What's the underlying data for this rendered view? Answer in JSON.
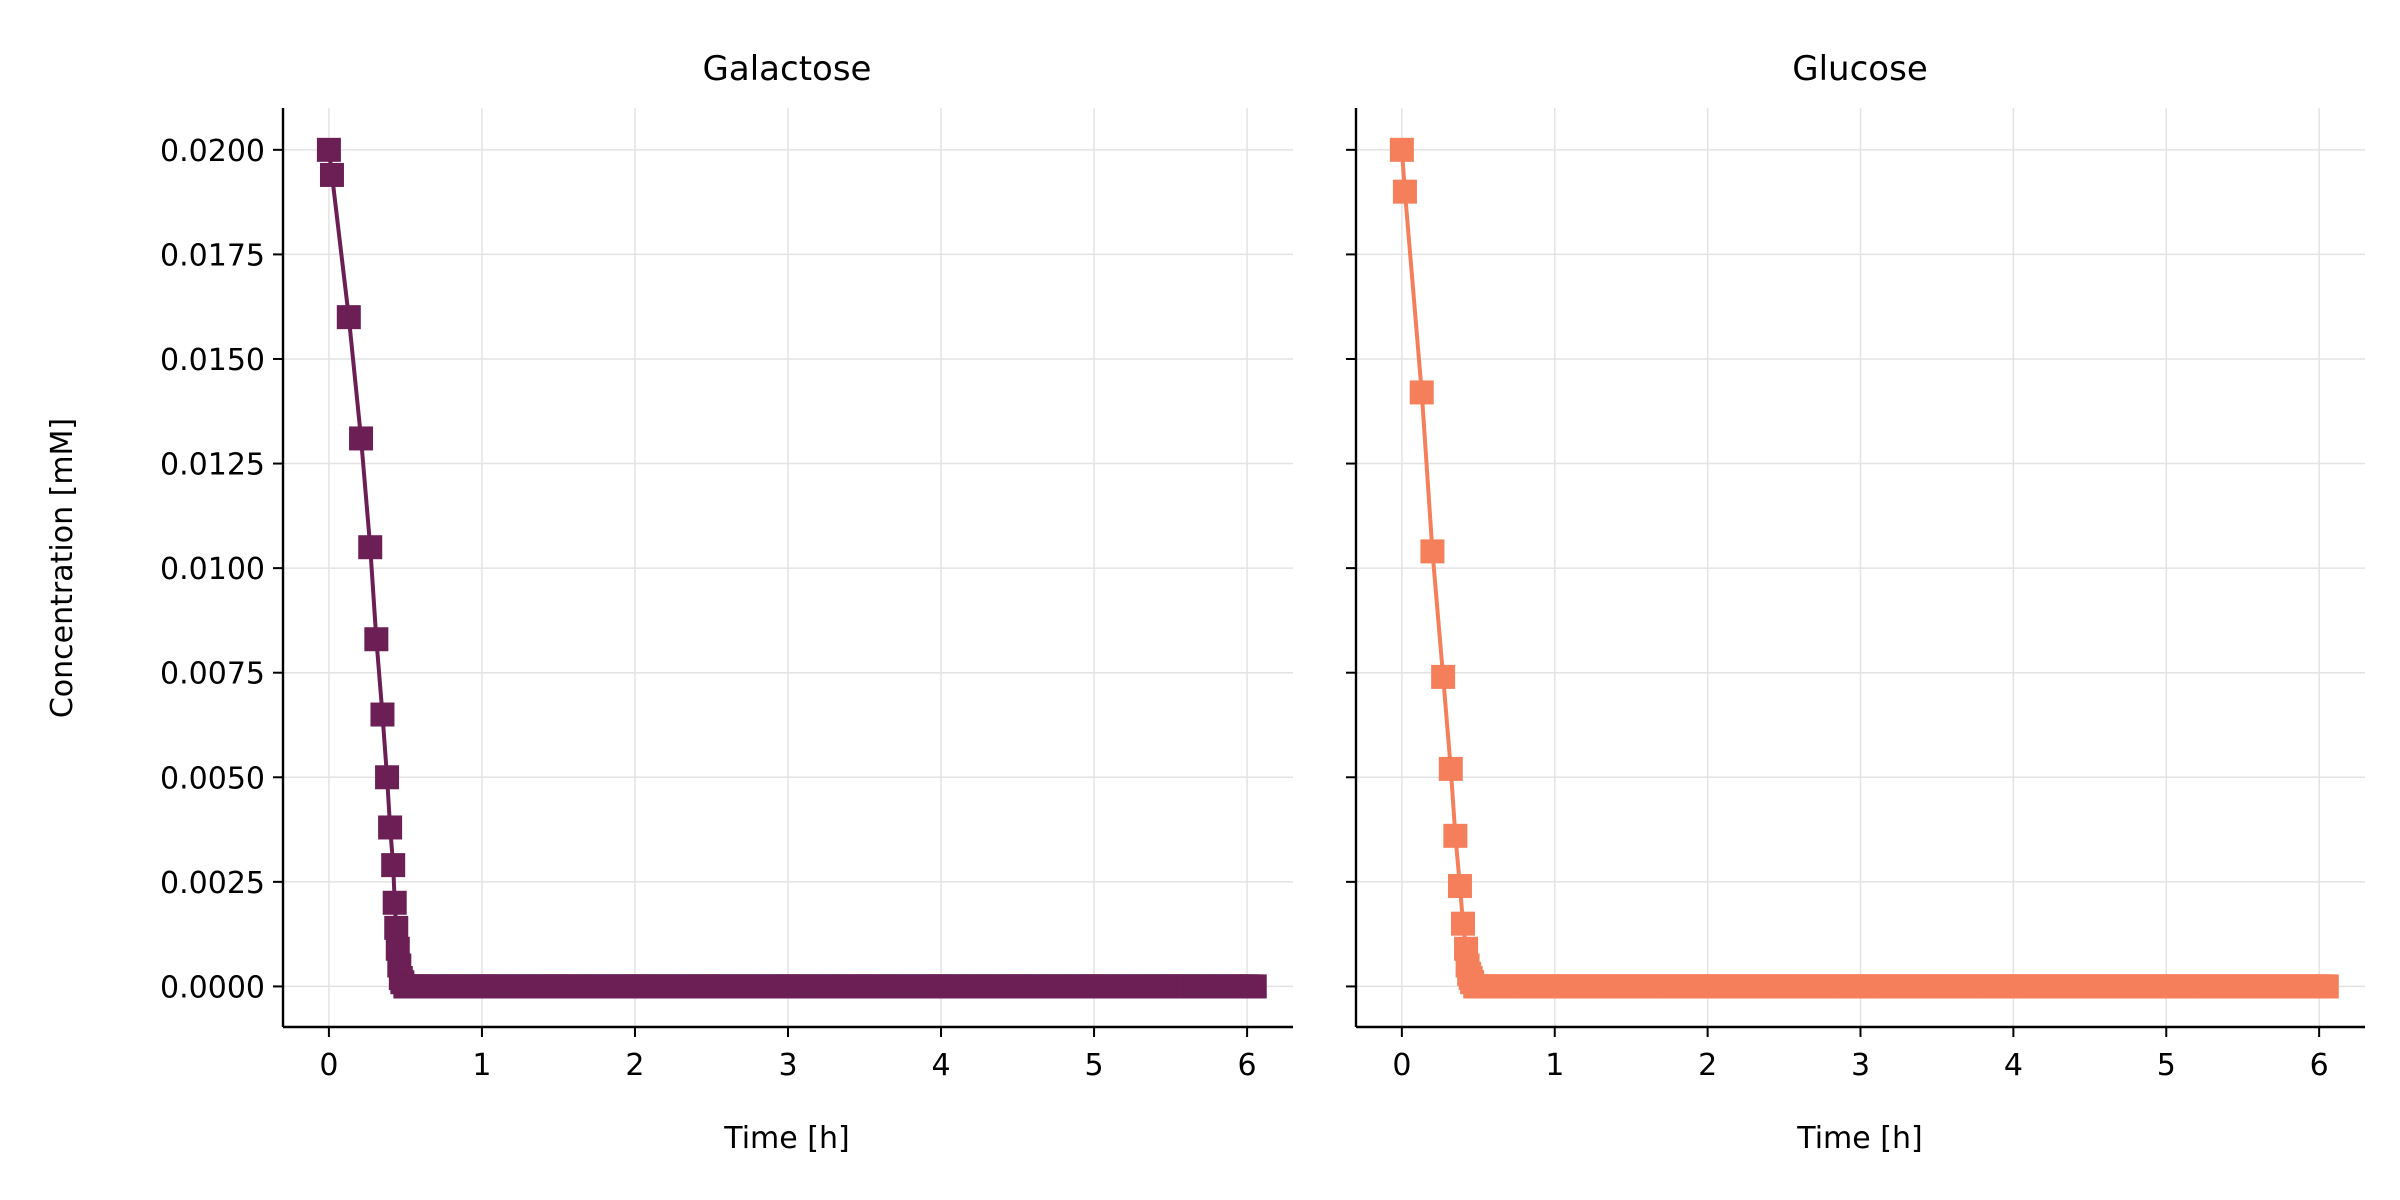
{
  "chart_data": [
    {
      "type": "line",
      "title": "Galactose",
      "xlabel": "Time [h]",
      "ylabel": "Concentration [mM]",
      "xlim": [
        -0.3,
        6.3
      ],
      "ylim": [
        -0.00097,
        0.021
      ],
      "xticks": [
        0,
        1,
        2,
        3,
        4,
        5,
        6
      ],
      "yticks": [
        "0.0000",
        "0.0025",
        "0.0050",
        "0.0075",
        "0.0100",
        "0.0125",
        "0.0150",
        "0.0175",
        "0.0200"
      ],
      "grid": true,
      "marker": "square",
      "color": "#6b1f55",
      "series": [
        {
          "x": [
            0.0,
            0.02,
            0.13,
            0.21,
            0.27,
            0.31,
            0.35,
            0.38,
            0.4,
            0.42,
            0.43,
            0.44,
            0.45,
            0.46,
            0.47,
            0.48,
            0.5,
            0.55,
            0.6,
            0.8,
            1.0,
            1.5,
            2.0,
            2.5,
            3.0,
            3.5,
            4.0,
            4.5,
            5.0,
            5.5,
            6.0,
            6.05
          ],
          "y": [
            0.02,
            0.0194,
            0.016,
            0.0131,
            0.0105,
            0.0083,
            0.0065,
            0.005,
            0.0038,
            0.0029,
            0.002,
            0.0014,
            0.0009,
            0.0005,
            0.0002,
            0.0001,
            0.0,
            0.0,
            0.0,
            0.0,
            0.0,
            0.0,
            0.0,
            0.0,
            0.0,
            0.0,
            0.0,
            0.0,
            0.0,
            0.0,
            0.0,
            0.0
          ]
        }
      ]
    },
    {
      "type": "line",
      "title": "Glucose",
      "xlabel": "Time [h]",
      "ylabel": "",
      "xlim": [
        -0.3,
        6.3
      ],
      "ylim": [
        -0.00097,
        0.021
      ],
      "xticks": [
        0,
        1,
        2,
        3,
        4,
        5,
        6
      ],
      "yticks": [],
      "grid": true,
      "marker": "square",
      "color": "#f47f5a",
      "series": [
        {
          "x": [
            0.0,
            0.02,
            0.13,
            0.2,
            0.27,
            0.32,
            0.35,
            0.38,
            0.4,
            0.42,
            0.43,
            0.44,
            0.45,
            0.46,
            0.48,
            0.5,
            0.55,
            0.6,
            0.8,
            1.0,
            1.5,
            2.0,
            2.5,
            3.0,
            3.5,
            4.0,
            4.5,
            5.0,
            5.5,
            6.0,
            6.05
          ],
          "y": [
            0.02,
            0.019,
            0.0142,
            0.0104,
            0.0074,
            0.0052,
            0.0036,
            0.0024,
            0.0015,
            0.0009,
            0.0005,
            0.0003,
            0.0002,
            0.0001,
            0.0,
            0.0,
            0.0,
            0.0,
            0.0,
            0.0,
            0.0,
            0.0,
            0.0,
            0.0,
            0.0,
            0.0,
            0.0,
            0.0,
            0.0,
            0.0,
            0.0
          ]
        }
      ]
    }
  ]
}
